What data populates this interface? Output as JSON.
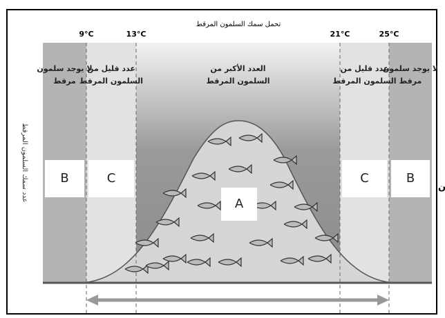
{
  "header": {
    "title": "تحمل سمك السلمون المرقط"
  },
  "axis_label": "عدد سمك السلمون المرقط",
  "temperatures": [
    "9°C",
    "13°C",
    "21°C",
    "25°C"
  ],
  "zones": [
    {
      "lines": [
        "لا يوجد سلمون",
        "مرقط"
      ],
      "box": "B"
    },
    {
      "lines": [
        "عدد قليل من",
        "السلمون المرقط"
      ],
      "box": "C"
    },
    {
      "lines": [
        "العدد الأكبر من",
        "السلمون المرقط"
      ],
      "box": "A"
    },
    {
      "lines": [
        "عدد قليل من",
        "السلمون المرقط"
      ],
      "box": "C"
    },
    {
      "lines": [
        "لا يوجد سلمون",
        "مرقط"
      ],
      "box": "B"
    }
  ],
  "edge_mark": "ن"
}
